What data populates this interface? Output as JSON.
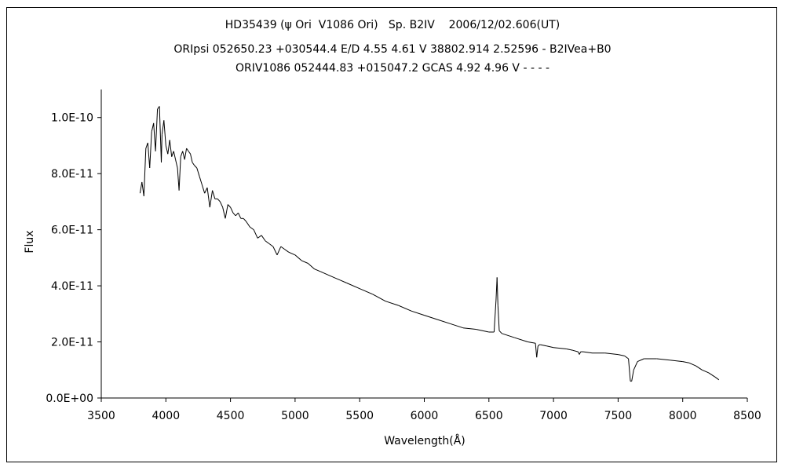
{
  "chart_data": {
    "type": "line",
    "title_lines": [
      "HD35439 (ψ Ori  V1086 Ori)   Sp. B2IV    2006/12/02.606(UT)",
      "ORIpsi 052650.23 +030544.4 E/D 4.55 4.61 V 38802.914 2.52596 - B2IVea+B0",
      "ORIV1086 052444.83 +015047.2 GCAS 4.92 4.96 V - - - -"
    ],
    "xlabel": "Wavelength(Å)",
    "ylabel": "Flux",
    "xlim": [
      3500,
      8500
    ],
    "ylim": [
      0,
      1.1e-10
    ],
    "x_ticks": [
      3500,
      4000,
      4500,
      5000,
      5500,
      6000,
      6500,
      7000,
      7500,
      8000,
      8500
    ],
    "y_ticks": [
      0,
      2e-11,
      4e-11,
      6e-11,
      8e-11,
      1e-10
    ],
    "y_tick_labels": [
      "0.0E+00",
      "2.0E-11",
      "4.0E-11",
      "6.0E-11",
      "8.0E-11",
      "1.0E-10"
    ],
    "grid": false,
    "legend": "none",
    "series": [
      {
        "color": "#000000",
        "x": [
          3800,
          3815,
          3830,
          3845,
          3860,
          3875,
          3890,
          3905,
          3920,
          3935,
          3950,
          3965,
          3970,
          3985,
          4000,
          4015,
          4030,
          4045,
          4060,
          4075,
          4090,
          4102,
          4115,
          4130,
          4145,
          4160,
          4175,
          4190,
          4205,
          4220,
          4240,
          4260,
          4280,
          4300,
          4320,
          4340,
          4360,
          4380,
          4400,
          4420,
          4440,
          4460,
          4480,
          4500,
          4520,
          4540,
          4560,
          4580,
          4600,
          4620,
          4650,
          4680,
          4710,
          4740,
          4770,
          4800,
          4830,
          4861,
          4890,
          4920,
          4950,
          5000,
          5050,
          5100,
          5150,
          5200,
          5250,
          5300,
          5350,
          5400,
          5500,
          5600,
          5700,
          5800,
          5900,
          6000,
          6100,
          6200,
          6300,
          6400,
          6500,
          6540,
          6555,
          6563,
          6570,
          6580,
          6600,
          6700,
          6800,
          6860,
          6870,
          6880,
          6890,
          6900,
          6950,
          7000,
          7100,
          7150,
          7190,
          7200,
          7210,
          7230,
          7300,
          7400,
          7500,
          7550,
          7580,
          7595,
          7605,
          7620,
          7650,
          7700,
          7800,
          7900,
          8000,
          8050,
          8100,
          8150,
          8200,
          8250,
          8280
        ],
        "y": [
          7.3e-11,
          7.7e-11,
          7.2e-11,
          8.9e-11,
          9.1e-11,
          8.2e-11,
          9.5e-11,
          9.8e-11,
          8.8e-11,
          1.03e-10,
          1.04e-10,
          8.4e-11,
          9.4e-11,
          9.9e-11,
          9e-11,
          8.7e-11,
          9.2e-11,
          8.6e-11,
          8.8e-11,
          8.5e-11,
          8.2e-11,
          7.4e-11,
          8.6e-11,
          8.8e-11,
          8.5e-11,
          8.9e-11,
          8.8e-11,
          8.7e-11,
          8.4e-11,
          8.3e-11,
          8.2e-11,
          7.9e-11,
          7.6e-11,
          7.3e-11,
          7.5e-11,
          6.8e-11,
          7.4e-11,
          7.1e-11,
          7.1e-11,
          7e-11,
          6.8e-11,
          6.4e-11,
          6.9e-11,
          6.8e-11,
          6.6e-11,
          6.5e-11,
          6.6e-11,
          6.4e-11,
          6.4e-11,
          6.3e-11,
          6.1e-11,
          6e-11,
          5.7e-11,
          5.8e-11,
          5.6e-11,
          5.5e-11,
          5.4e-11,
          5.1e-11,
          5.4e-11,
          5.3e-11,
          5.2e-11,
          5.1e-11,
          4.9e-11,
          4.8e-11,
          4.6e-11,
          4.5e-11,
          4.4e-11,
          4.3e-11,
          4.2e-11,
          4.1e-11,
          3.9e-11,
          3.7e-11,
          3.45e-11,
          3.3e-11,
          3.1e-11,
          2.95e-11,
          2.8e-11,
          2.65e-11,
          2.5e-11,
          2.45e-11,
          2.35e-11,
          2.35e-11,
          3.5e-11,
          4.3e-11,
          3.3e-11,
          2.4e-11,
          2.3e-11,
          2.15e-11,
          2e-11,
          1.95e-11,
          1.45e-11,
          1.85e-11,
          1.9e-11,
          1.9e-11,
          1.85e-11,
          1.8e-11,
          1.75e-11,
          1.7e-11,
          1.65e-11,
          1.55e-11,
          1.65e-11,
          1.65e-11,
          1.6e-11,
          1.6e-11,
          1.55e-11,
          1.5e-11,
          1.4e-11,
          6e-12,
          6e-12,
          1e-11,
          1.3e-11,
          1.4e-11,
          1.4e-11,
          1.35e-11,
          1.3e-11,
          1.25e-11,
          1.15e-11,
          1e-11,
          9e-12,
          7.5e-12,
          6.5e-12
        ]
      }
    ]
  }
}
